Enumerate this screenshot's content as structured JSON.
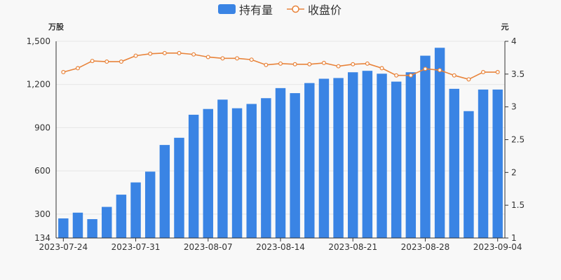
{
  "chart_data": {
    "type": "bar+line",
    "legend": {
      "placement": "top-center",
      "items": [
        "持有量",
        "收盘价"
      ]
    },
    "y_left": {
      "unit": "万股",
      "ticks": [
        134,
        300,
        600,
        900,
        1200,
        1500
      ],
      "tick_labels": [
        "134",
        "300",
        "600",
        "900",
        "1,200",
        "1,500"
      ],
      "range": [
        134,
        1500
      ]
    },
    "y_right": {
      "unit": "元",
      "ticks": [
        1,
        1.5,
        2,
        2.5,
        3,
        3.5,
        4
      ],
      "tick_labels": [
        "1",
        "1.5",
        "2",
        "2.5",
        "3",
        "3.5",
        "4"
      ],
      "range": [
        1,
        4
      ]
    },
    "x_tick_labels": [
      "2023-07-24",
      "2023-07-31",
      "2023-08-07",
      "2023-08-14",
      "2023-08-21",
      "2023-08-28",
      "2023-09-04"
    ],
    "dates": [
      "2023-07-24",
      "2023-07-25",
      "2023-07-26",
      "2023-07-27",
      "2023-07-28",
      "2023-07-31",
      "2023-08-01",
      "2023-08-02",
      "2023-08-03",
      "2023-08-04",
      "2023-08-07",
      "2023-08-08",
      "2023-08-09",
      "2023-08-10",
      "2023-08-11",
      "2023-08-14",
      "2023-08-15",
      "2023-08-16",
      "2023-08-17",
      "2023-08-18",
      "2023-08-21",
      "2023-08-22",
      "2023-08-23",
      "2023-08-24",
      "2023-08-25",
      "2023-08-28",
      "2023-08-29",
      "2023-08-30",
      "2023-08-31",
      "2023-09-01",
      "2023-09-04"
    ],
    "series": [
      {
        "name": "持有量",
        "type": "bar",
        "axis": "left",
        "color": "#3a84e4",
        "values": [
          270,
          310,
          265,
          350,
          435,
          520,
          595,
          780,
          830,
          990,
          1030,
          1095,
          1035,
          1065,
          1105,
          1175,
          1140,
          1210,
          1240,
          1245,
          1285,
          1295,
          1275,
          1220,
          1285,
          1400,
          1455,
          1170,
          1015,
          1165,
          1165
        ]
      },
      {
        "name": "收盘价",
        "type": "line",
        "axis": "right",
        "color": "#e8833a",
        "values": [
          3.53,
          3.59,
          3.7,
          3.69,
          3.69,
          3.78,
          3.81,
          3.82,
          3.82,
          3.8,
          3.76,
          3.74,
          3.74,
          3.72,
          3.64,
          3.66,
          3.65,
          3.65,
          3.67,
          3.62,
          3.65,
          3.66,
          3.59,
          3.48,
          3.48,
          3.58,
          3.56,
          3.48,
          3.42,
          3.53,
          3.53
        ]
      }
    ]
  }
}
